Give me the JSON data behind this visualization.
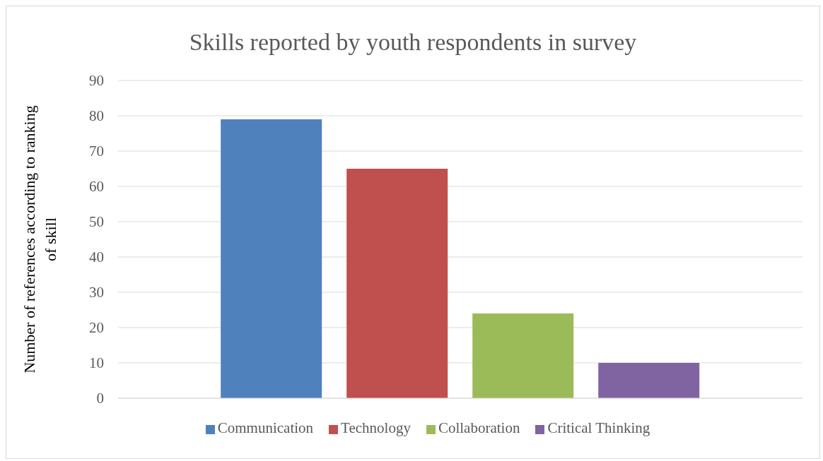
{
  "chart_data": {
    "type": "bar",
    "title": "Skills reported by youth respondents in survey",
    "ylabel": "Number of references according to ranking of skill",
    "categories": [
      null
    ],
    "series": [
      {
        "name": "Communication",
        "color": "#4f81bd",
        "values": [
          79
        ]
      },
      {
        "name": "Technology",
        "color": "#c0504d",
        "values": [
          65
        ]
      },
      {
        "name": "Collaboration",
        "color": "#9bbb59",
        "values": [
          24
        ]
      },
      {
        "name": "Critical Thinking",
        "color": "#8064a2",
        "values": [
          10
        ]
      }
    ],
    "ylim": [
      0,
      90
    ],
    "yticks": [
      0,
      10,
      20,
      30,
      40,
      50,
      60,
      70,
      80,
      90
    ],
    "grid": "y",
    "legend": "bottom"
  }
}
